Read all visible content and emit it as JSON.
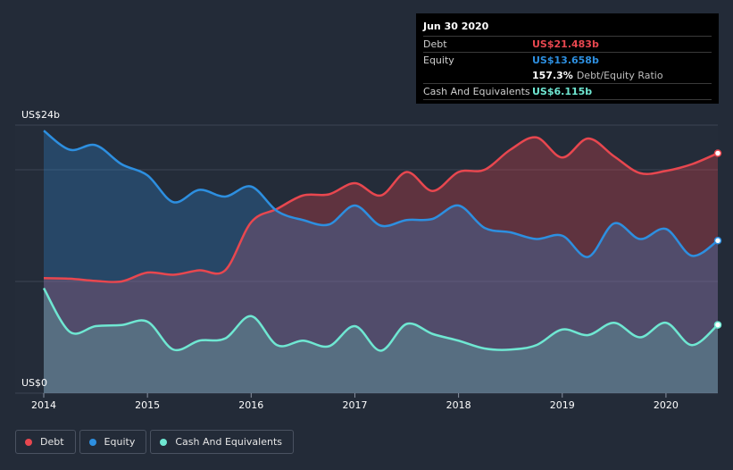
{
  "tooltip": {
    "date": "Jun 30 2020",
    "debt_label": "Debt",
    "debt_value": "US$21.483b",
    "equity_label": "Equity",
    "equity_value": "US$13.658b",
    "ratio_value": "157.3%",
    "ratio_label": "Debt/Equity Ratio",
    "cash_label": "Cash And Equivalents",
    "cash_value": "US$6.115b"
  },
  "legend": [
    {
      "label": "Debt",
      "color": "#e8474f"
    },
    {
      "label": "Equity",
      "color": "#2d8fe0"
    },
    {
      "label": "Cash And Equivalents",
      "color": "#6fe7d2"
    }
  ],
  "chart_data": {
    "type": "area",
    "y_top_label": "US$24b",
    "y_bottom_label": "US$0",
    "ylim": [
      0,
      24
    ],
    "xlim": [
      2014,
      2020.5
    ],
    "x_ticks": [
      2014,
      2015,
      2016,
      2017,
      2018,
      2019,
      2020
    ],
    "grid": true,
    "legend_position": "bottom-left",
    "series": [
      {
        "name": "Debt",
        "color": "#e8474f",
        "x": [
          2014,
          2014.25,
          2014.5,
          2014.75,
          2015,
          2015.25,
          2015.5,
          2015.75,
          2016,
          2016.25,
          2016.5,
          2016.75,
          2017,
          2017.25,
          2017.5,
          2017.75,
          2018,
          2018.25,
          2018.5,
          2018.75,
          2019,
          2019.25,
          2019.5,
          2019.75,
          2020,
          2020.25,
          2020.5
        ],
        "values": [
          10.3,
          10.25,
          10.05,
          10.0,
          10.8,
          10.6,
          11.0,
          11.0,
          15.3,
          16.5,
          17.7,
          17.8,
          18.8,
          17.7,
          19.8,
          18.1,
          19.8,
          20.0,
          21.8,
          22.9,
          21.1,
          22.8,
          21.2,
          19.7,
          19.9,
          20.5,
          21.483
        ]
      },
      {
        "name": "Equity",
        "color": "#2d8fe0",
        "x": [
          2014,
          2014.25,
          2014.5,
          2014.75,
          2015,
          2015.25,
          2015.5,
          2015.75,
          2016,
          2016.25,
          2016.5,
          2016.75,
          2017,
          2017.25,
          2017.5,
          2017.75,
          2018,
          2018.25,
          2018.5,
          2018.75,
          2019,
          2019.25,
          2019.5,
          2019.75,
          2020,
          2020.25,
          2020.5
        ],
        "values": [
          23.5,
          21.8,
          22.2,
          20.5,
          19.5,
          17.1,
          18.2,
          17.6,
          18.5,
          16.3,
          15.5,
          15.1,
          16.8,
          15.0,
          15.5,
          15.6,
          16.8,
          14.8,
          14.4,
          13.8,
          14.1,
          12.2,
          15.2,
          13.8,
          14.7,
          12.3,
          13.658
        ]
      },
      {
        "name": "Cash And Equivalents",
        "color": "#6fe7d2",
        "x": [
          2014,
          2014.25,
          2014.5,
          2014.75,
          2015,
          2015.25,
          2015.5,
          2015.75,
          2016,
          2016.25,
          2016.5,
          2016.75,
          2017,
          2017.25,
          2017.5,
          2017.75,
          2018,
          2018.25,
          2018.5,
          2018.75,
          2019,
          2019.25,
          2019.5,
          2019.75,
          2020,
          2020.25,
          2020.5
        ],
        "values": [
          9.4,
          5.5,
          6.0,
          6.1,
          6.4,
          3.9,
          4.7,
          4.9,
          6.9,
          4.3,
          4.7,
          4.2,
          6.0,
          3.8,
          6.2,
          5.3,
          4.7,
          4.0,
          3.9,
          4.3,
          5.7,
          5.2,
          6.3,
          5.0,
          6.3,
          4.3,
          6.115
        ]
      }
    ]
  }
}
